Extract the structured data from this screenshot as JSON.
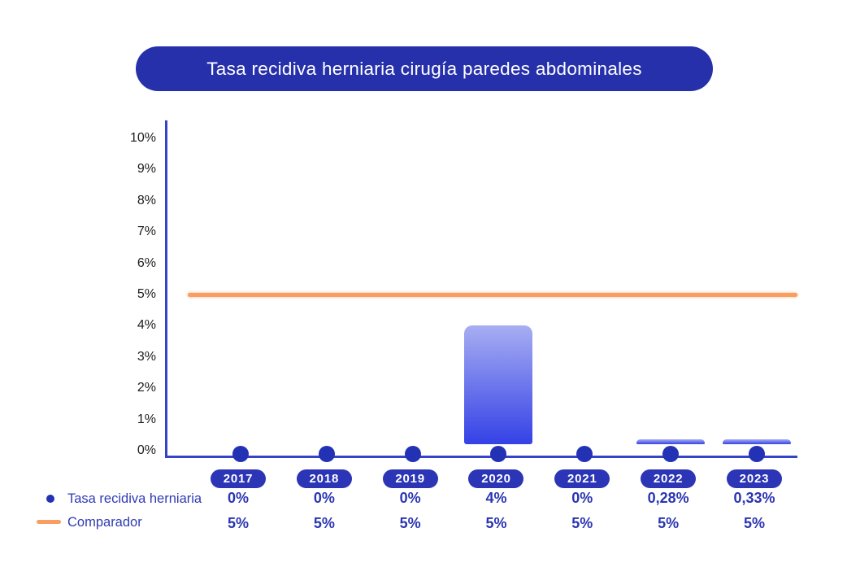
{
  "title": "Tasa recidiva herniaria cirugía paredes abdominales",
  "colors": {
    "title_pill_bg": "#2630ab",
    "title_text": "#ffffff",
    "axis_line": "#3543c6",
    "tick_text": "#1c1c1e",
    "bar_gradient_top": "#a7aef2",
    "bar_gradient_bottom": "#3441e6",
    "dot": "#2331b5",
    "year_pill_bg": "#2b35b5",
    "year_pill_text": "#ffffff",
    "value_text": "#2b35b2",
    "comparator_line": "#f99d61",
    "legend_text": "#2f3cb4"
  },
  "chart_data": {
    "type": "bar",
    "title": "Tasa recidiva herniaria cirugía paredes abdominales",
    "categories": [
      "2017",
      "2018",
      "2019",
      "2020",
      "2021",
      "2022",
      "2023"
    ],
    "series": [
      {
        "name": "Tasa recidiva herniaria",
        "type": "bar",
        "marker": "dot",
        "values": [
          0,
          0,
          0,
          4,
          0,
          0.28,
          0.33
        ],
        "labels": [
          "0%",
          "0%",
          "0%",
          "4%",
          "0%",
          "0,28%",
          "0,33%"
        ]
      },
      {
        "name": "Comparador",
        "type": "line",
        "values": [
          5,
          5,
          5,
          5,
          5,
          5,
          5
        ],
        "labels": [
          "5%",
          "5%",
          "5%",
          "5%",
          "5%",
          "5%",
          "5%"
        ]
      }
    ],
    "ylim": [
      0,
      10
    ],
    "ytick_labels": [
      "0%",
      "1%",
      "2%",
      "3%",
      "4%",
      "5%",
      "6%",
      "7%",
      "8%",
      "9%",
      "10%"
    ],
    "xlabel": "",
    "ylabel": "",
    "grid": false,
    "legend_position": "bottom-left"
  }
}
